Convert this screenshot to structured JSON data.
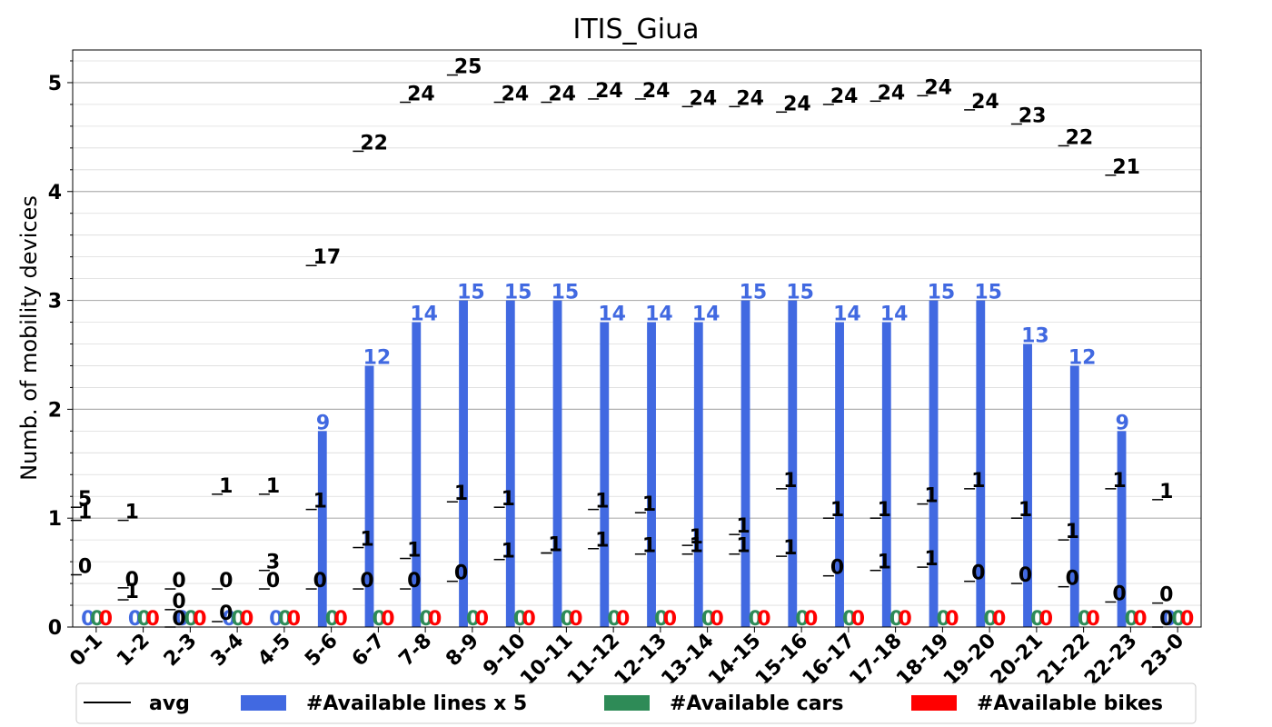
{
  "chart_data": {
    "type": "bar",
    "title": "ITIS_Giua",
    "xlabel": "",
    "ylabel": "Numb. of mobility devices",
    "ylim": [
      0,
      5.3
    ],
    "yticks": [
      0,
      1,
      2,
      3,
      4,
      5
    ],
    "grid": true,
    "legend_position": "bottom",
    "categories": [
      "0-1",
      "1-2",
      "2-3",
      "3-4",
      "4-5",
      "5-6",
      "6-7",
      "7-8",
      "8-9",
      "9-10",
      "10-11",
      "11-12",
      "12-13",
      "13-14",
      "14-15",
      "15-16",
      "16-17",
      "17-18",
      "18-19",
      "19-20",
      "20-21",
      "21-22",
      "22-23",
      "23-0"
    ],
    "series": [
      {
        "name": "#Available lines x 5",
        "color": "#4169e1",
        "values": [
          0,
          0,
          0,
          0,
          0,
          1.8,
          2.4,
          2.8,
          3.0,
          3.0,
          3.0,
          2.8,
          2.8,
          2.8,
          3.0,
          3.0,
          2.8,
          2.8,
          3.0,
          3.0,
          2.6,
          2.4,
          1.8,
          0
        ],
        "labels": [
          "0",
          "0",
          "0",
          "0",
          "0",
          "9",
          "12",
          "14",
          "15",
          "15",
          "15",
          "14",
          "14",
          "14",
          "15",
          "15",
          "14",
          "14",
          "15",
          "15",
          "13",
          "12",
          "9",
          "0"
        ]
      },
      {
        "name": "#Available cars",
        "color": "#2e8b57",
        "values": [
          0,
          0,
          0,
          0,
          0,
          0,
          0,
          0,
          0,
          0,
          0,
          0,
          0,
          0,
          0,
          0,
          0,
          0,
          0,
          0,
          0,
          0,
          0,
          0
        ],
        "labels": [
          "0",
          "0",
          "0",
          "0",
          "0",
          "0",
          "0",
          "0",
          "0",
          "0",
          "0",
          "0",
          "0",
          "0",
          "0",
          "0",
          "0",
          "0",
          "0",
          "0",
          "0",
          "0",
          "0",
          "0"
        ]
      },
      {
        "name": "#Available bikes",
        "color": "#ff0000",
        "values": [
          0,
          0,
          0,
          0,
          0,
          0,
          0,
          0,
          0,
          0,
          0,
          0,
          0,
          0,
          0,
          0,
          0,
          0,
          0,
          0,
          0,
          0,
          0,
          0
        ],
        "labels": [
          "0",
          "0",
          "0",
          "0",
          "0",
          "0",
          "0",
          "0",
          "0",
          "0",
          "0",
          "0",
          "0",
          "0",
          "0",
          "0",
          "0",
          "0",
          "0",
          "0",
          "0",
          "0",
          "0",
          "0"
        ]
      }
    ],
    "avg": {
      "name": "avg",
      "color": "#000000",
      "lines": [
        {
          "values": [
            1.1,
            0.25,
            0,
            0.05,
            0.52,
            3.32,
            4.37,
            4.82,
            5.07,
            4.82,
            4.82,
            4.85,
            4.85,
            4.78,
            4.78,
            4.73,
            4.8,
            4.83,
            4.88,
            4.75,
            4.62,
            4.42,
            4.15,
            0
          ],
          "labels": [
            "5",
            "1",
            "0",
            "0",
            "3",
            "17",
            "22",
            "24",
            "25",
            "24",
            "24",
            "24",
            "24",
            "24",
            "24",
            "24",
            "24",
            "24",
            "24",
            "24",
            "23",
            "22",
            "21",
            "0"
          ]
        },
        {
          "values": [
            0.48,
            0.36,
            0.35,
            0.35,
            0.35,
            0.35,
            0.35,
            0.35,
            0.42,
            0.62,
            0.68,
            0.72,
            0.67,
            0.67,
            0.67,
            0.65,
            0.47,
            0.52,
            0.55,
            0.42,
            0.4,
            0.37,
            0.23,
            0.22
          ],
          "labels": [
            "0",
            "0",
            "0",
            "0",
            "0",
            "0",
            "0",
            "0",
            "0",
            "1",
            "1",
            "1",
            "1",
            "1",
            "1",
            "1",
            "0",
            "1",
            "1",
            "0",
            "0",
            "0",
            "0",
            "0"
          ]
        },
        {
          "values": [
            0.98,
            0.98,
            0.16,
            1.22,
            1.22,
            1.08,
            0.73,
            0.63,
            1.15,
            1.1,
            0.68,
            1.08,
            1.05,
            0.75,
            0.85,
            1.27,
            1.0,
            1.0,
            1.13,
            1.27,
            1.0,
            0.8,
            1.27,
            1.17
          ],
          "labels": [
            "1",
            "1",
            "0",
            "1",
            "1",
            "1",
            "1",
            "1",
            "1",
            "1",
            "1",
            "1",
            "1",
            "1",
            "1",
            "1",
            "1",
            "1",
            "1",
            "1",
            "1",
            "1",
            "1",
            "1"
          ]
        }
      ]
    }
  }
}
